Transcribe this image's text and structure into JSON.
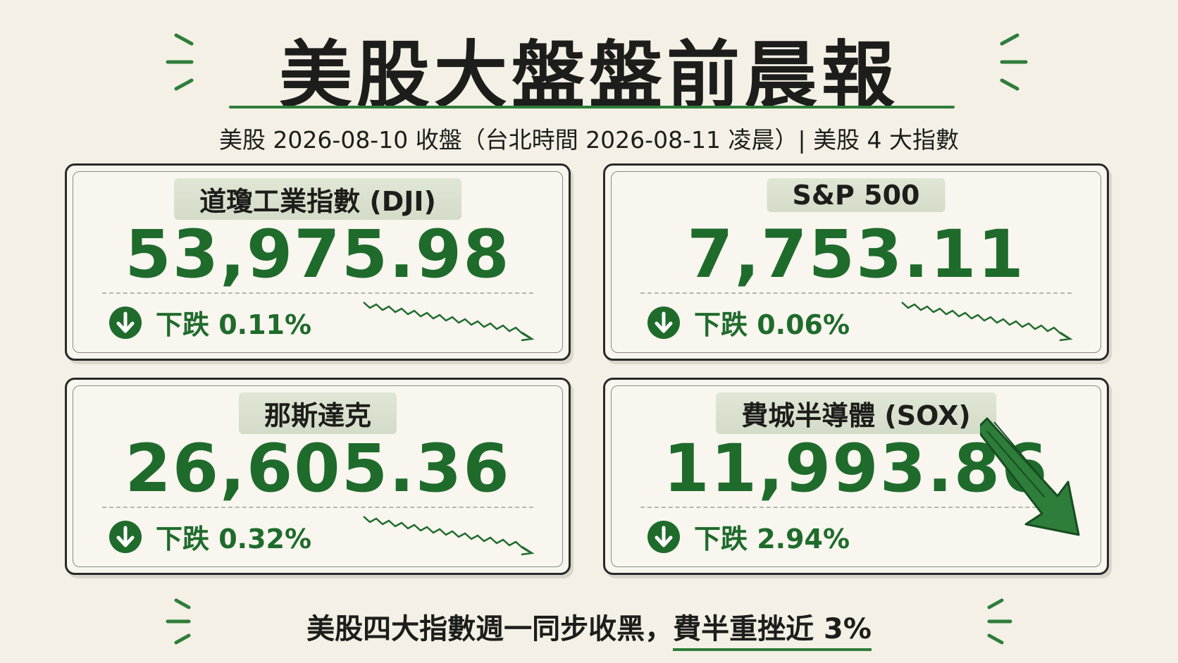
{
  "header": {
    "title": "美股大盤盤前晨報",
    "subtitle": "美股 2026-08-10 收盤（台北時間 2026-08-11 凌晨）| 美股 4 大指數"
  },
  "cards": [
    {
      "name": "道瓊工業指數 (DJI)",
      "value": "53,975.98",
      "change": "下跌 0.11%"
    },
    {
      "name": "S&P 500",
      "value": "7,753.11",
      "change": "下跌 0.06%"
    },
    {
      "name": "那斯達克",
      "value": "26,605.36",
      "change": "下跌 0.32%"
    },
    {
      "name": "費城半導體 (SOX)",
      "value": "11,993.86",
      "change": "下跌 2.94%"
    }
  ],
  "footer": {
    "text": "美股四大指數週一同步收黑，",
    "highlight": "費半重挫近 3%"
  }
}
